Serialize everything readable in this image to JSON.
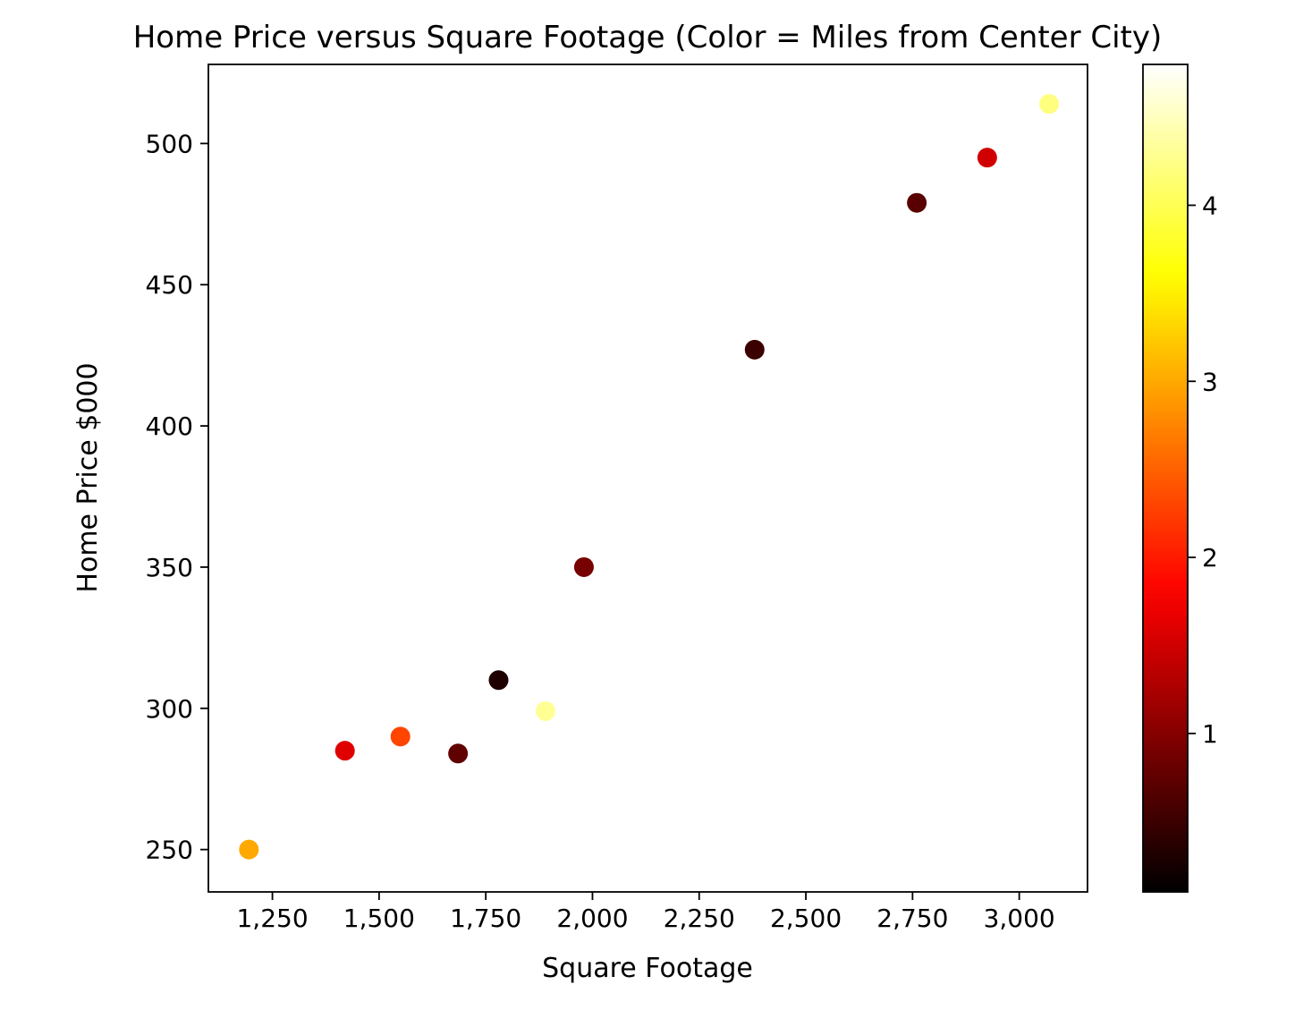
{
  "chart_data": {
    "type": "scatter",
    "title": "Home Price versus Square Footage (Color = Miles from Center City)",
    "xlabel": "Square Footage",
    "ylabel": "Home Price $000",
    "xlim": [
      1100,
      3160
    ],
    "ylim": [
      235,
      528
    ],
    "grid": false,
    "xticks": {
      "values": [
        1250,
        1500,
        1750,
        2000,
        2250,
        2500,
        2750,
        3000
      ],
      "labels": [
        "1,250",
        "1,500",
        "1,750",
        "2,000",
        "2,250",
        "2,500",
        "2,750",
        "3,000"
      ]
    },
    "yticks": {
      "values": [
        250,
        300,
        350,
        400,
        450,
        500
      ],
      "labels": [
        "250",
        "300",
        "350",
        "400",
        "450",
        "500"
      ]
    },
    "points": [
      {
        "sqft": 1195,
        "price": 250,
        "miles": 3.0
      },
      {
        "sqft": 1420,
        "price": 285,
        "miles": 1.6
      },
      {
        "sqft": 1550,
        "price": 290,
        "miles": 2.3
      },
      {
        "sqft": 1685,
        "price": 284,
        "miles": 0.75
      },
      {
        "sqft": 1780,
        "price": 310,
        "miles": 0.3
      },
      {
        "sqft": 1890,
        "price": 299,
        "miles": 4.3
      },
      {
        "sqft": 1980,
        "price": 350,
        "miles": 0.9
      },
      {
        "sqft": 2380,
        "price": 427,
        "miles": 0.5
      },
      {
        "sqft": 2760,
        "price": 479,
        "miles": 0.7
      },
      {
        "sqft": 2925,
        "price": 495,
        "miles": 1.5
      },
      {
        "sqft": 3070,
        "price": 514,
        "miles": 4.2
      }
    ],
    "colorbar": {
      "label": "",
      "colormap": "hot",
      "cmin": 0.1,
      "cmax": 4.8,
      "ticks": {
        "values": [
          1,
          2,
          3,
          4
        ],
        "labels": [
          "1",
          "2",
          "3",
          "4"
        ]
      }
    },
    "colors": {
      "background": "#ffffff",
      "axis": "#000000",
      "text": "#000000"
    }
  }
}
